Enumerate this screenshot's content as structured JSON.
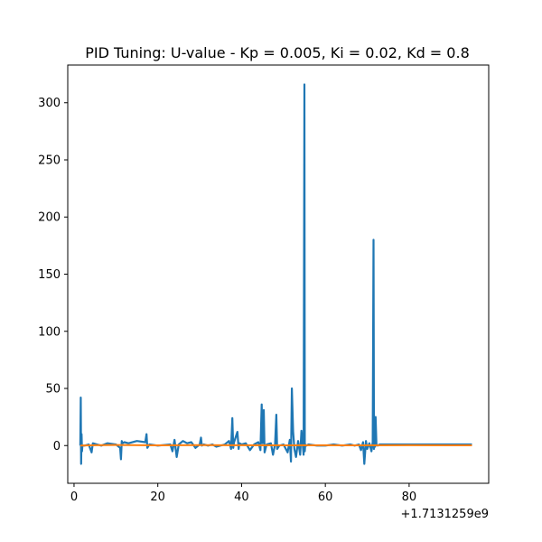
{
  "chart_data": {
    "type": "line",
    "title": "PID Tuning: U-value - Kp = 0.005, Ki = 0.02, Kd = 0.8",
    "xlabel": "",
    "ylabel": "",
    "x_offset_label": "+1.7131259e9",
    "xlim": [
      -1.5,
      99
    ],
    "ylim": [
      -33,
      333
    ],
    "x_ticks": [
      0,
      20,
      40,
      60,
      80
    ],
    "y_ticks": [
      0,
      50,
      100,
      150,
      200,
      250,
      300
    ],
    "x_tick_labels": [
      "0",
      "20",
      "40",
      "60",
      "80"
    ],
    "y_tick_labels": [
      "0",
      "50",
      "100",
      "150",
      "200",
      "250",
      "300"
    ],
    "grid": false,
    "legend": false,
    "series": [
      {
        "color": "#1f77b4",
        "x": [
          1.5,
          1.6,
          1.7,
          1.8,
          1.9,
          2.0,
          2.5,
          3.5,
          4.2,
          4.3,
          4.5,
          5.5,
          6.5,
          8.0,
          10.0,
          11.0,
          11.2,
          11.4,
          11.6,
          12.0,
          13.0,
          15.0,
          17.0,
          17.3,
          17.5,
          18.0,
          20.0,
          23.0,
          23.5,
          24.0,
          24.5,
          25.0,
          26.0,
          27.0,
          28.0,
          29.0,
          30.0,
          30.3,
          30.5,
          31.0,
          32.0,
          33.0,
          34.0,
          36.0,
          37.0,
          37.5,
          37.8,
          38.0,
          38.2,
          39.0,
          39.3,
          39.5,
          40.0,
          41.0,
          42.0,
          43.0,
          44.0,
          44.5,
          44.8,
          45.0,
          45.3,
          45.5,
          46.0,
          47.0,
          47.5,
          48.0,
          48.3,
          48.5,
          49.0,
          50.0,
          51.0,
          51.5,
          51.8,
          52.0,
          52.3,
          52.6,
          53.0,
          53.5,
          54.0,
          54.3,
          54.6,
          54.8,
          55.0,
          55.1,
          55.2,
          55.5,
          56.0,
          58.0,
          60.0,
          62.0,
          64.0,
          66.0,
          67.0,
          68.0,
          68.5,
          69.0,
          69.3,
          69.7,
          70.0,
          70.5,
          71.0,
          71.3,
          71.5,
          71.6,
          71.7,
          71.9,
          72.0,
          72.2,
          72.5,
          73.0,
          75.0,
          80.0,
          85.0,
          90.0,
          95.0
        ],
        "y": [
          0,
          42,
          -16,
          10,
          -5,
          0,
          0,
          1,
          -6,
          -3,
          2,
          1,
          0,
          2,
          1,
          -2,
          -12,
          4,
          2,
          3,
          2,
          4,
          3,
          10,
          -2,
          1,
          0,
          1,
          -5,
          5,
          -10,
          1,
          4,
          2,
          3,
          -2,
          1,
          7,
          0,
          1,
          0,
          1,
          -1,
          1,
          4,
          -3,
          24,
          -2,
          3,
          12,
          -3,
          2,
          1,
          2,
          -4,
          1,
          3,
          -4,
          36,
          2,
          31,
          -6,
          1,
          2,
          -8,
          1,
          27,
          -3,
          0,
          1,
          -6,
          5,
          -14,
          50,
          12,
          -3,
          -10,
          4,
          -8,
          13,
          1,
          -8,
          316,
          -5,
          1,
          0,
          1,
          0,
          0,
          1,
          0,
          1,
          0,
          1,
          -4,
          3,
          -16,
          4,
          -3,
          2,
          -5,
          3,
          180,
          -3,
          8,
          -1,
          25,
          1,
          0,
          1,
          1,
          1,
          1,
          1,
          1
        ]
      },
      {
        "color": "#ff7f0e",
        "x": [
          1.5,
          5.0,
          10.0,
          20.0,
          30.0,
          40.0,
          50.0,
          60.0,
          70.0,
          80.0,
          90.0,
          95.0
        ],
        "y": [
          0,
          0.3,
          0.5,
          0.2,
          0.4,
          0.3,
          0.2,
          0.3,
          0.2,
          0.3,
          0.2,
          0.2
        ]
      }
    ]
  }
}
